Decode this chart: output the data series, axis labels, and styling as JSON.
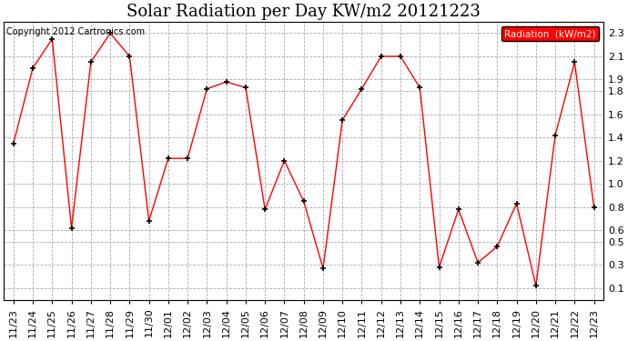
{
  "title": "Solar Radiation per Day KW/m2 20121223",
  "legend_label": "Radiation  (kW/m2)",
  "copyright": "Copyright 2012 Cartronics.com",
  "dates": [
    "11/23",
    "11/24",
    "11/25",
    "11/26",
    "11/27",
    "11/28",
    "11/29",
    "11/30",
    "12/01",
    "12/02",
    "12/03",
    "12/04",
    "12/05",
    "12/06",
    "12/07",
    "12/08",
    "12/09",
    "12/10",
    "12/11",
    "12/12",
    "12/13",
    "12/14",
    "12/15",
    "12/16",
    "12/17",
    "12/18",
    "12/19",
    "12/20",
    "12/21",
    "12/22",
    "12/23"
  ],
  "values": [
    1.35,
    2.0,
    2.25,
    0.62,
    2.05,
    2.3,
    2.1,
    0.68,
    1.22,
    1.22,
    1.82,
    1.88,
    1.83,
    0.78,
    1.2,
    0.85,
    0.27,
    1.55,
    1.82,
    2.1,
    2.1,
    1.83,
    0.28,
    0.78,
    0.32,
    0.46,
    0.83,
    0.12,
    1.42,
    2.05,
    0.8
  ],
  "ylim": [
    0.0,
    2.4
  ],
  "yticks": [
    0.1,
    0.3,
    0.5,
    0.6,
    0.8,
    1.0,
    1.2,
    1.4,
    1.6,
    1.8,
    1.9,
    2.1,
    2.3
  ],
  "line_color": "red",
  "marker_color": "black",
  "background_color": "#ffffff",
  "legend_bg": "red",
  "legend_text_color": "white",
  "title_fontsize": 13,
  "tick_fontsize": 8,
  "copyright_fontsize": 7
}
